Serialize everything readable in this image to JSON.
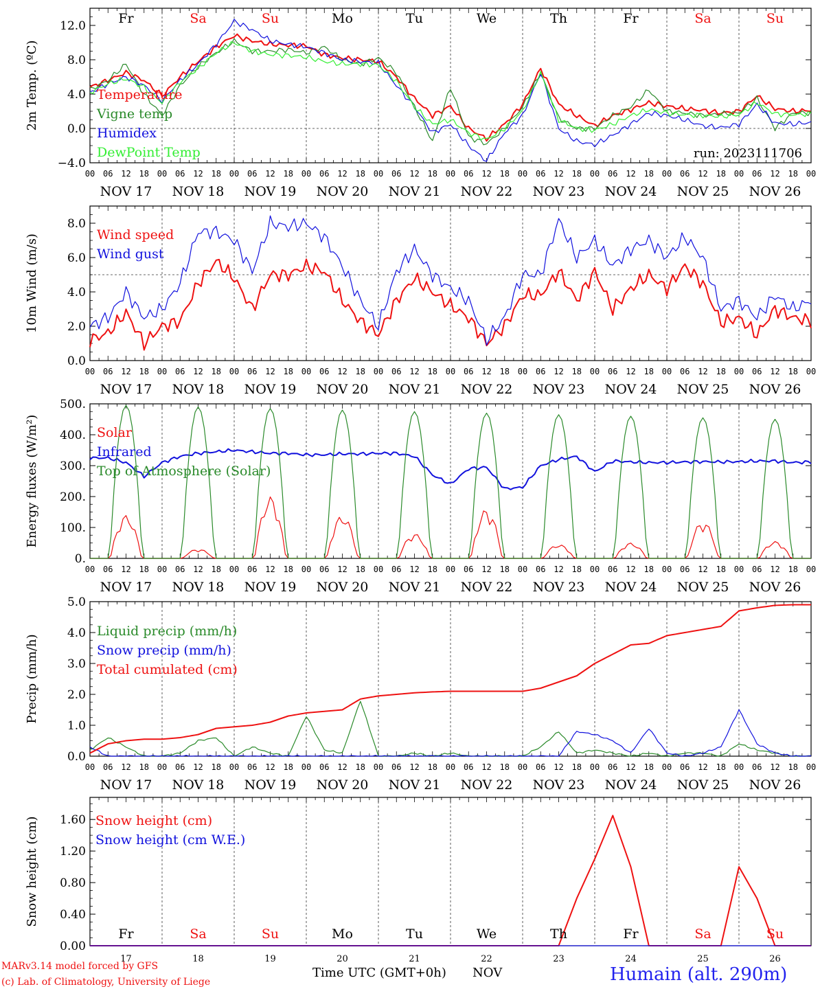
{
  "domain_note": "",
  "footer": {
    "credit_line1": "MARv3.14 model forced by GFS",
    "credit_line2": "(c) Lab. of Climatology, University of Liege",
    "xlabel": "Time UTC (GMT+0h)",
    "month": "NOV",
    "station": "Humain (alt. 290m)"
  },
  "colors": {
    "red": "#ee1111",
    "green": "#2a8a2a",
    "blue": "#1111dd",
    "lightgreen": "#33ee33",
    "weekend": "#ee1111",
    "weekday": "#000000"
  },
  "days": {
    "names": [
      "Fr",
      "Sa",
      "Su",
      "Mo",
      "Tu",
      "We",
      "Th",
      "Fr",
      "Sa",
      "Su"
    ],
    "weekend": [
      false,
      true,
      true,
      false,
      false,
      false,
      false,
      false,
      true,
      true
    ],
    "date_labels": [
      "NOV 17",
      "NOV 18",
      "NOV 19",
      "NOV 20",
      "NOV 21",
      "NOV 22",
      "NOV 23",
      "NOV 24",
      "NOV 25",
      "NOV 26"
    ],
    "numbers": [
      "17",
      "18",
      "19",
      "20",
      "21",
      "22",
      "23",
      "24",
      "25",
      "26"
    ],
    "hour_ticks": [
      "00",
      "06",
      "12",
      "18"
    ],
    "final_tick": "00"
  },
  "chart_data": [
    {
      "type": "line",
      "ylabel": "2m Temp. (ºC)",
      "ylim": [
        -4,
        14
      ],
      "yticks": [
        "−4.0",
        "0.0",
        "4.0",
        "8.0",
        "12.0"
      ],
      "ytick_values": [
        -4,
        0,
        4,
        8,
        12
      ],
      "reference_line": 0,
      "annotation": "run: 2023111706",
      "x_hours_since_nov17_00": [
        0,
        6,
        12,
        18,
        24,
        30,
        36,
        42,
        48,
        54,
        60,
        66,
        72,
        78,
        84,
        90,
        96,
        102,
        108,
        114,
        120,
        126,
        132,
        138,
        144,
        150,
        156,
        162,
        168,
        174,
        180,
        186,
        192,
        198,
        204,
        210,
        216,
        222,
        228,
        234,
        240
      ],
      "series": [
        {
          "name": "Temperature",
          "color": "red",
          "values": [
            4.8,
            5.6,
            6.5,
            5.6,
            3.8,
            6.0,
            7.8,
            9.5,
            10.8,
            10.2,
            9.8,
            9.7,
            9.6,
            8.6,
            8.2,
            8.0,
            7.8,
            6.0,
            3.5,
            1.5,
            2.6,
            0.0,
            -1.2,
            0.5,
            2.8,
            7.0,
            2.8,
            1.5,
            0.3,
            1.5,
            2.2,
            3.0,
            2.6,
            2.3,
            2.1,
            1.8,
            2.0,
            3.8,
            2.3,
            2.0,
            2.1
          ]
        },
        {
          "name": "Vigne temp",
          "color": "green",
          "values": [
            4.5,
            5.6,
            7.5,
            4.0,
            1.5,
            5.0,
            7.2,
            8.8,
            10.2,
            9.0,
            9.0,
            9.2,
            8.8,
            9.5,
            8.0,
            7.5,
            8.2,
            6.5,
            2.5,
            -1.5,
            4.8,
            -1.0,
            -1.8,
            0.0,
            2.5,
            6.5,
            1.2,
            0.0,
            0.0,
            1.5,
            2.5,
            4.5,
            2.0,
            1.8,
            1.5,
            1.7,
            1.8,
            3.5,
            0.0,
            1.8,
            1.8
          ]
        },
        {
          "name": "Humidex",
          "color": "blue",
          "values": [
            4.2,
            5.2,
            6.0,
            5.0,
            3.2,
            5.6,
            7.5,
            9.8,
            12.5,
            11.5,
            10.2,
            9.8,
            9.5,
            8.8,
            8.0,
            7.8,
            7.6,
            5.0,
            2.5,
            -0.5,
            0.5,
            -2.0,
            -3.8,
            -0.5,
            1.5,
            6.5,
            0.0,
            -1.5,
            -1.9,
            -0.8,
            0.5,
            1.8,
            1.5,
            1.0,
            0.3,
            0.1,
            0.5,
            2.8,
            0.6,
            0.5,
            0.7
          ]
        },
        {
          "name": "DewPoint Temp",
          "color": "lightgreen",
          "values": [
            4.2,
            5.2,
            5.8,
            4.8,
            3.0,
            5.4,
            7.0,
            8.8,
            10.0,
            9.0,
            8.6,
            8.5,
            8.3,
            7.8,
            7.5,
            7.5,
            7.4,
            5.5,
            2.5,
            0.5,
            1.0,
            -0.5,
            -1.3,
            0.0,
            2.0,
            6.5,
            1.0,
            0.0,
            -0.2,
            0.5,
            1.5,
            2.2,
            1.8,
            1.6,
            1.5,
            1.4,
            1.6,
            3.0,
            1.7,
            1.6,
            1.7
          ]
        }
      ]
    },
    {
      "type": "line",
      "ylabel": "10m Wind (m/s)",
      "ylim": [
        0,
        9
      ],
      "yticks": [
        "0.0",
        "2.0",
        "4.0",
        "6.0",
        "8.0"
      ],
      "ytick_values": [
        0,
        2,
        4,
        6,
        8
      ],
      "reference_line": 5,
      "x_hours_since_nov17_00": [
        0,
        6,
        12,
        18,
        24,
        30,
        36,
        42,
        48,
        54,
        60,
        66,
        72,
        78,
        84,
        90,
        96,
        102,
        108,
        114,
        120,
        126,
        132,
        138,
        144,
        150,
        156,
        162,
        168,
        174,
        180,
        186,
        192,
        198,
        204,
        210,
        216,
        222,
        228,
        234,
        240
      ],
      "series": [
        {
          "name": "Wind speed",
          "color": "red",
          "values": [
            1.2,
            1.6,
            2.8,
            1.0,
            2.0,
            2.3,
            4.5,
            5.8,
            4.8,
            3.0,
            5.0,
            5.0,
            5.5,
            5.2,
            3.5,
            2.3,
            1.5,
            3.5,
            4.8,
            4.0,
            3.2,
            2.5,
            1.0,
            2.0,
            3.8,
            3.8,
            5.2,
            3.5,
            5.2,
            3.0,
            4.2,
            5.0,
            4.2,
            5.5,
            4.5,
            2.2,
            2.5,
            1.5,
            3.0,
            2.5,
            2.3
          ]
        },
        {
          "name": "Wind gust",
          "color": "blue",
          "values": [
            2.0,
            2.5,
            4.0,
            2.5,
            3.0,
            4.5,
            7.5,
            7.5,
            7.0,
            5.2,
            8.0,
            7.8,
            8.0,
            7.2,
            5.5,
            3.5,
            2.0,
            5.2,
            6.5,
            5.0,
            4.2,
            3.5,
            1.2,
            2.5,
            5.0,
            5.0,
            8.2,
            6.0,
            7.0,
            5.5,
            6.5,
            7.0,
            6.0,
            7.2,
            6.0,
            3.0,
            3.5,
            2.5,
            3.8,
            3.0,
            3.5
          ]
        }
      ]
    },
    {
      "type": "line",
      "ylabel": "Energy fluxes (W/m²)",
      "ylim": [
        0,
        500
      ],
      "yticks": [
        "0.",
        "100.",
        "200.",
        "300.",
        "400.",
        "500."
      ],
      "ytick_values": [
        0,
        100,
        200,
        300,
        400,
        500
      ],
      "x_hours_since_nov17_00": [
        0,
        6,
        12,
        18,
        24,
        30,
        36,
        42,
        48,
        54,
        60,
        66,
        72,
        78,
        84,
        90,
        96,
        102,
        108,
        114,
        120,
        126,
        132,
        138,
        144,
        150,
        156,
        162,
        168,
        174,
        180,
        186,
        192,
        198,
        204,
        210,
        216,
        222,
        228,
        234,
        240
      ],
      "series": [
        {
          "name": "Solar",
          "color": "red",
          "solar_peaks": [
            140,
            30,
            200,
            140,
            80,
            160,
            45,
            50,
            120,
            55
          ]
        },
        {
          "name": "Infrared",
          "color": "blue",
          "values": [
            325,
            325,
            310,
            265,
            310,
            330,
            340,
            345,
            350,
            345,
            340,
            340,
            335,
            335,
            338,
            338,
            340,
            340,
            330,
            270,
            240,
            290,
            295,
            225,
            230,
            300,
            320,
            330,
            280,
            315,
            312,
            310,
            310,
            312,
            313,
            312,
            313,
            315,
            315,
            310,
            312
          ]
        },
        {
          "name": "Top of Atmosphere (Solar)",
          "color": "green",
          "toa_peaks": [
            495,
            490,
            485,
            480,
            475,
            470,
            465,
            460,
            455,
            450
          ]
        }
      ]
    },
    {
      "type": "line",
      "ylabel": "Precip (mm/h)",
      "ylim": [
        0,
        5
      ],
      "yticks": [
        "0.0",
        "1.0",
        "2.0",
        "3.0",
        "4.0",
        "5.0"
      ],
      "ytick_values": [
        0,
        1,
        2,
        3,
        4,
        5
      ],
      "x_hours_since_nov17_00": [
        0,
        6,
        12,
        18,
        24,
        30,
        36,
        42,
        48,
        54,
        60,
        66,
        72,
        78,
        84,
        90,
        96,
        102,
        108,
        114,
        120,
        126,
        132,
        138,
        144,
        150,
        156,
        162,
        168,
        174,
        180,
        186,
        192,
        198,
        204,
        210,
        216,
        222,
        228,
        234,
        240
      ],
      "series": [
        {
          "name": "Liquid precip (mm/h)",
          "color": "green",
          "values": [
            0.2,
            0.6,
            0.3,
            0.0,
            0.0,
            0.1,
            0.5,
            0.6,
            0.0,
            0.3,
            0.1,
            0.0,
            1.3,
            0.2,
            0.1,
            1.8,
            0.0,
            0.0,
            0.1,
            0.0,
            0.1,
            0.0,
            0.0,
            0.0,
            0.0,
            0.3,
            0.8,
            0.1,
            0.2,
            0.1,
            0.0,
            0.1,
            0.0,
            0.1,
            0.1,
            0.0,
            0.4,
            0.2,
            0.1,
            0.0,
            0.0
          ]
        },
        {
          "name": "Snow precip (mm/h)",
          "color": "blue",
          "values": [
            0.3,
            0.0,
            0.0,
            0.0,
            0.0,
            0.0,
            0.0,
            0.0,
            0.0,
            0.0,
            0.0,
            0.0,
            0.0,
            0.0,
            0.0,
            0.0,
            0.0,
            0.0,
            0.0,
            0.0,
            0.0,
            0.0,
            0.0,
            0.0,
            0.0,
            0.0,
            0.0,
            0.8,
            0.7,
            0.5,
            0.1,
            0.9,
            0.1,
            0.0,
            0.1,
            0.3,
            1.5,
            0.4,
            0.1,
            0.0,
            0.0
          ]
        },
        {
          "name": "Total cumulated (cm)",
          "color": "red",
          "values": [
            0.1,
            0.4,
            0.5,
            0.55,
            0.55,
            0.6,
            0.7,
            0.9,
            0.95,
            1.0,
            1.1,
            1.3,
            1.4,
            1.45,
            1.5,
            1.85,
            1.95,
            2.0,
            2.05,
            2.08,
            2.1,
            2.1,
            2.1,
            2.1,
            2.1,
            2.2,
            2.4,
            2.6,
            3.0,
            3.3,
            3.6,
            3.65,
            3.9,
            4.0,
            4.1,
            4.2,
            4.7,
            4.8,
            4.88,
            4.9,
            4.9
          ]
        }
      ]
    },
    {
      "type": "line",
      "ylabel": "Snow height (cm)",
      "ylim": [
        0,
        1.88
      ],
      "yticks": [
        "0.00",
        "0.40",
        "0.80",
        "1.20",
        "1.60"
      ],
      "ytick_values": [
        0,
        0.4,
        0.8,
        1.2,
        1.6
      ],
      "x_hours_since_nov17_00": [
        0,
        6,
        12,
        18,
        24,
        30,
        36,
        42,
        48,
        54,
        60,
        66,
        72,
        78,
        84,
        90,
        96,
        102,
        108,
        114,
        120,
        126,
        132,
        138,
        144,
        150,
        156,
        162,
        168,
        174,
        180,
        186,
        192,
        198,
        204,
        210,
        216,
        222,
        228,
        234,
        240
      ],
      "series": [
        {
          "name": "Snow height (cm)",
          "color": "red",
          "values": [
            0,
            0,
            0,
            0,
            0,
            0,
            0,
            0,
            0,
            0,
            0,
            0,
            0,
            0,
            0,
            0,
            0,
            0,
            0,
            0,
            0,
            0,
            0,
            0,
            0,
            0,
            0,
            0.6,
            1.1,
            1.65,
            1.0,
            0,
            0,
            0,
            0,
            0,
            1.0,
            0.6,
            0,
            0,
            0
          ]
        },
        {
          "name": "Snow height (cm W.E.)",
          "color": "blue",
          "values": [
            0,
            0,
            0,
            0,
            0,
            0,
            0,
            0,
            0,
            0,
            0,
            0,
            0,
            0,
            0,
            0,
            0,
            0,
            0,
            0,
            0,
            0,
            0,
            0,
            0,
            0,
            0,
            0,
            0,
            0,
            0,
            0,
            0,
            0,
            0,
            0,
            0,
            0,
            0,
            0,
            0
          ]
        }
      ]
    }
  ]
}
